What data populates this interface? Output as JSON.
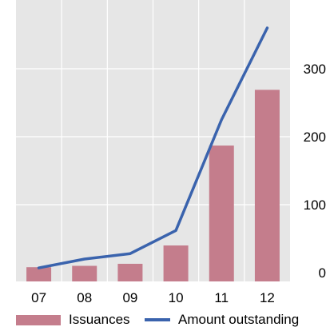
{
  "chart_data": {
    "type": "bar+line",
    "categories": [
      "07",
      "08",
      "09",
      "10",
      "11",
      "12"
    ],
    "series": [
      {
        "name": "Issuances",
        "type": "bar",
        "values": [
          8,
          10,
          13,
          40,
          187,
          269
        ]
      },
      {
        "name": "Amount outstanding",
        "type": "line",
        "values": [
          7,
          20,
          28,
          62,
          225,
          360
        ]
      }
    ],
    "y_axis": {
      "position": "right",
      "ticks": [
        0,
        100,
        200,
        300
      ],
      "ylim": [
        0,
        400
      ]
    },
    "grid": "on",
    "legend": "bottom",
    "colors": {
      "bar": "#c47d8c",
      "line": "#3a63ad",
      "plot_bg": "#e6e6e6",
      "grid": "#ffffff"
    }
  }
}
